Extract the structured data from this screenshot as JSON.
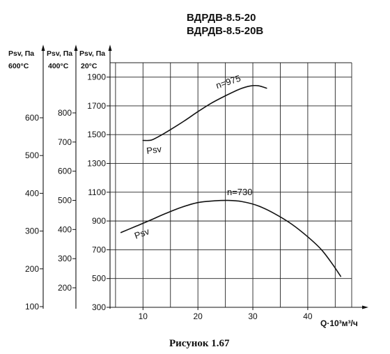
{
  "title_lines": [
    "ВДРДВ-8.5-20",
    "ВДРДВ-8.5-20В"
  ],
  "caption": "Рисунок 1.67",
  "chart_data": {
    "type": "line",
    "title": "ВДРДВ-8.5-20 / ВДРДВ-8.5-20В",
    "xlabel": "Q·10³м³/ч",
    "x_ticks": [
      10,
      20,
      30,
      40
    ],
    "xlim": [
      4,
      48
    ],
    "ylim": [
      300,
      2000
    ],
    "grid": true,
    "y_axes": [
      {
        "label": "Psv, Па 20°C",
        "ticks": [
          300,
          500,
          700,
          900,
          1100,
          1300,
          1500,
          1700,
          1900
        ]
      },
      {
        "label": "Psv, Па 400°C",
        "ticks": [
          200,
          300,
          400,
          500,
          600,
          700,
          800
        ]
      },
      {
        "label": "Psv, Па 600°C",
        "ticks": [
          100,
          200,
          300,
          400,
          500,
          600
        ]
      }
    ],
    "series": [
      {
        "name": "n=975",
        "curve_label": "Psv",
        "x": [
          10.0,
          11.5,
          13.0,
          15.0,
          17.5,
          20.0,
          22.5,
          25.0,
          27.5,
          29.5,
          31.0,
          32.5
        ],
        "y": [
          1460,
          1462,
          1490,
          1535,
          1595,
          1660,
          1720,
          1770,
          1815,
          1838,
          1840,
          1823
        ]
      },
      {
        "name": "n=730",
        "curve_label": "Psv",
        "x": [
          6.0,
          8.5,
          11.0,
          14.0,
          17.0,
          20.0,
          23.0,
          25.5,
          28.0,
          31.0,
          34.0,
          37.0,
          40.0,
          42.5,
          44.5,
          46.0
        ],
        "y": [
          820,
          860,
          900,
          950,
          995,
          1028,
          1040,
          1043,
          1035,
          1005,
          950,
          880,
          790,
          700,
          600,
          515
        ]
      }
    ]
  }
}
